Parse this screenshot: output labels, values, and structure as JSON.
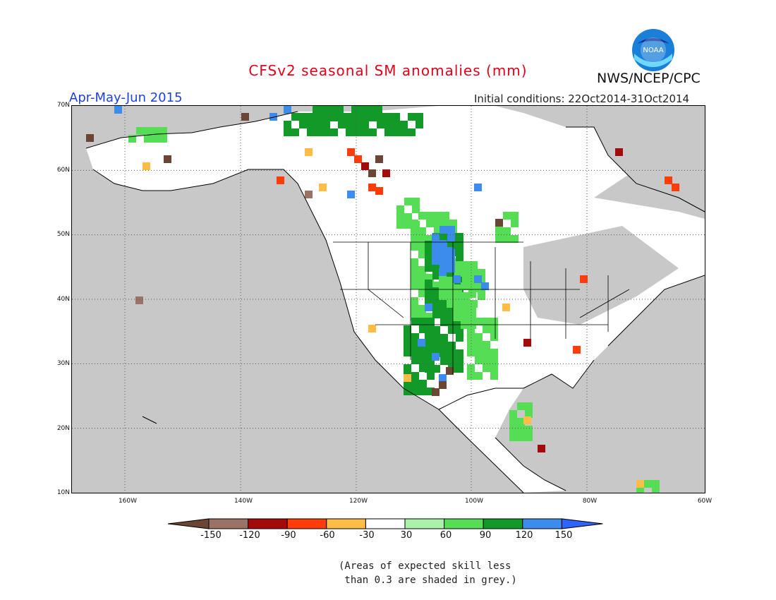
{
  "header": {
    "title": "CFSv2 seasonal SM anomalies (mm)",
    "season": "Apr-May-Jun 2015",
    "initial_conditions": "Initial conditions: 22Oct2014-31Oct2014",
    "agency": "NWS/NCEP/CPC",
    "logo_text": "NOAA"
  },
  "map": {
    "region": "North America",
    "lat_labels": [
      "70N",
      "60N",
      "50N",
      "40N",
      "30N",
      "20N",
      "10N"
    ],
    "lon_labels": [
      "160W",
      "140W",
      "120W",
      "100W",
      "80W",
      "60W"
    ],
    "lat_range": [
      10,
      70
    ],
    "lon_range": [
      -170,
      -60
    ],
    "grid": "dotted",
    "background_color": "#c8c8c8"
  },
  "colorbar": {
    "labels": [
      "-150",
      "-120",
      "-90",
      "-60",
      "-30",
      "30",
      "60",
      "90",
      "120",
      "150"
    ],
    "colors": [
      "#6b4634",
      "#9b7266",
      "#a50a0a",
      "#ff3c0a",
      "#ffbd46",
      "#ffffff",
      "#aaf2aa",
      "#55dd55",
      "#119a28",
      "#3c8ced",
      "#2d64ff"
    ],
    "units": "mm"
  },
  "footnote": "(Areas of expected skill less\n than 0.3 are shaded in grey.)"
}
